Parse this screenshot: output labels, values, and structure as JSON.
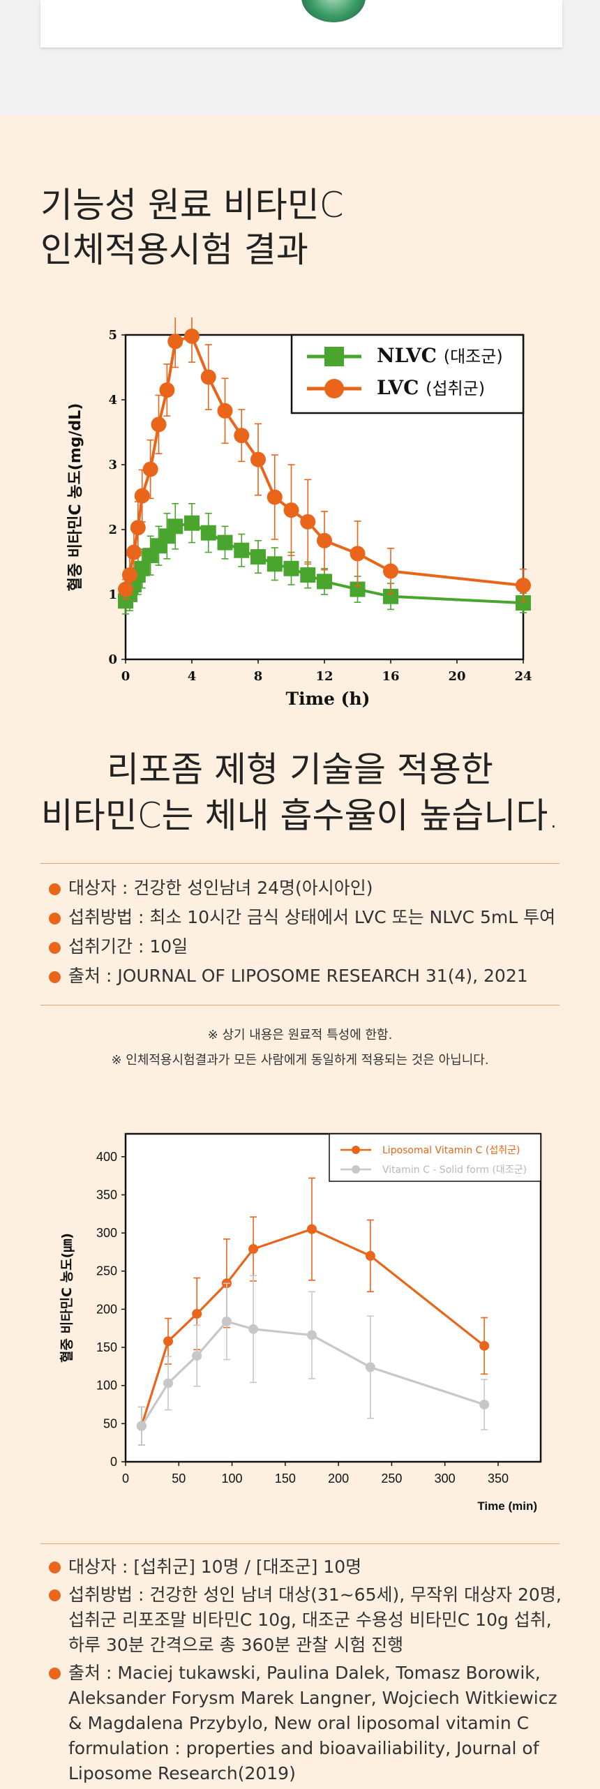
{
  "heading": {
    "line1": "기능성 원료 비타민C",
    "line2": "인체적용시험 결과"
  },
  "chart_data": [
    {
      "type": "line",
      "title": "",
      "xlabel": "Time (h)",
      "ylabel": "혈중 비타민C 농도(mg/dL)",
      "xlim": [
        0,
        24
      ],
      "ylim": [
        0,
        5
      ],
      "xticks": [
        0,
        4,
        8,
        12,
        16,
        20,
        24
      ],
      "yticks": [
        0,
        1,
        2,
        3,
        4,
        5
      ],
      "legend_position": "top-right",
      "series": [
        {
          "name": "NLVC",
          "name_suffix": "(대조군)",
          "color": "#4aa52e",
          "marker": "square",
          "x": [
            0,
            0.25,
            0.5,
            0.75,
            1,
            1.5,
            2,
            2.5,
            3,
            4,
            5,
            6,
            7,
            8,
            9,
            10,
            11,
            12,
            14,
            16,
            24
          ],
          "y": [
            0.9,
            1.0,
            1.15,
            1.3,
            1.4,
            1.6,
            1.75,
            1.9,
            2.05,
            2.1,
            1.95,
            1.8,
            1.68,
            1.58,
            1.47,
            1.4,
            1.3,
            1.2,
            1.08,
            0.97,
            0.87
          ],
          "err": [
            0.2,
            0.25,
            0.25,
            0.3,
            0.3,
            0.3,
            0.3,
            0.35,
            0.35,
            0.3,
            0.3,
            0.25,
            0.25,
            0.25,
            0.25,
            0.25,
            0.2,
            0.2,
            0.2,
            0.2,
            0.15
          ]
        },
        {
          "name": "LVC",
          "name_suffix": "(섭취군)",
          "color": "#e8651a",
          "marker": "circle",
          "x": [
            0,
            0.25,
            0.5,
            0.75,
            1,
            1.5,
            2,
            2.5,
            3,
            4,
            5,
            6,
            7,
            8,
            9,
            10,
            11,
            12,
            14,
            16,
            24
          ],
          "y": [
            1.08,
            1.3,
            1.65,
            2.03,
            2.52,
            2.93,
            3.62,
            4.15,
            4.9,
            4.98,
            4.35,
            3.83,
            3.45,
            3.08,
            2.5,
            2.3,
            2.12,
            1.83,
            1.63,
            1.36,
            1.14
          ],
          "err": [
            0.15,
            0.3,
            0.35,
            0.4,
            0.4,
            0.45,
            0.45,
            0.4,
            0.4,
            0.4,
            0.5,
            0.5,
            0.4,
            0.55,
            0.65,
            0.7,
            0.65,
            0.45,
            0.5,
            0.35,
            0.25
          ]
        }
      ]
    },
    {
      "type": "line",
      "title": "",
      "xlabel": "Time (min)",
      "ylabel": "혈중 비타민C 농도(㎛)",
      "xlim": [
        0,
        390
      ],
      "ylim": [
        0,
        430
      ],
      "xticks": [
        0,
        50,
        100,
        150,
        200,
        250,
        300,
        350
      ],
      "yticks": [
        0,
        50,
        100,
        150,
        200,
        250,
        300,
        350,
        400
      ],
      "legend_position": "top-right",
      "series": [
        {
          "name": "Liposomal Vitamin C (섭취군)",
          "color": "#e8651a",
          "marker": "circle",
          "x": [
            15,
            40,
            67,
            95,
            120,
            175,
            230,
            337
          ],
          "y": [
            47,
            158,
            194,
            234,
            279,
            305,
            270,
            152
          ],
          "err": [
            25,
            30,
            47,
            58,
            42,
            67,
            47,
            37
          ]
        },
        {
          "name": "Vitamin C - Solid form (대조군)",
          "color": "#c7c7c7",
          "marker": "circle",
          "x": [
            15,
            40,
            67,
            95,
            120,
            175,
            230,
            337
          ],
          "y": [
            47,
            103,
            139,
            184,
            174,
            166,
            124,
            75
          ],
          "err": [
            25,
            35,
            40,
            50,
            70,
            57,
            67,
            33
          ]
        }
      ]
    }
  ],
  "sub_heading": {
    "line1": "리포좀 제형 기술을 적용한",
    "line2": "비타민C는 체내 흡수율이 높습니다."
  },
  "study1": [
    "대상자 : 건강한 성인남녀 24명(아시아인)",
    "섭취방법 : 최소 10시간 금식 상태에서 LVC 또는 NLVC 5mL 투여",
    "섭취기간 : 10일",
    "출처 : JOURNAL OF LIPOSOME RESEARCH 31(4), 2021"
  ],
  "notes": [
    "※ 상기 내용은 원료적 특성에 한함.",
    "※ 인체적용시험결과가 모든 사람에게 동일하게 적용되는 것은 아닙니다."
  ],
  "study2": [
    "대상자 : [섭취군] 10명 / [대조군] 10명",
    "섭취방법 : 건강한 성인 남녀 대상(31~65세), 무작위 대상자 20명, 섭취군 리포조말 비타민C 10g, 대조군 수용성 비타민C 10g 섭취, 하루 30분 간격으로 총 360분 관찰 시험 진행",
    "출처 : Maciej tukawski, Paulina Dalek, Tomasz Borowik, Aleksander Forysm Marek Langner, Wojciech Witkiewicz & Magdalena Przybylo, New oral liposomal vitamin C formulation : properties and bioavailiability, Journal of Liposome Research(2019)"
  ]
}
